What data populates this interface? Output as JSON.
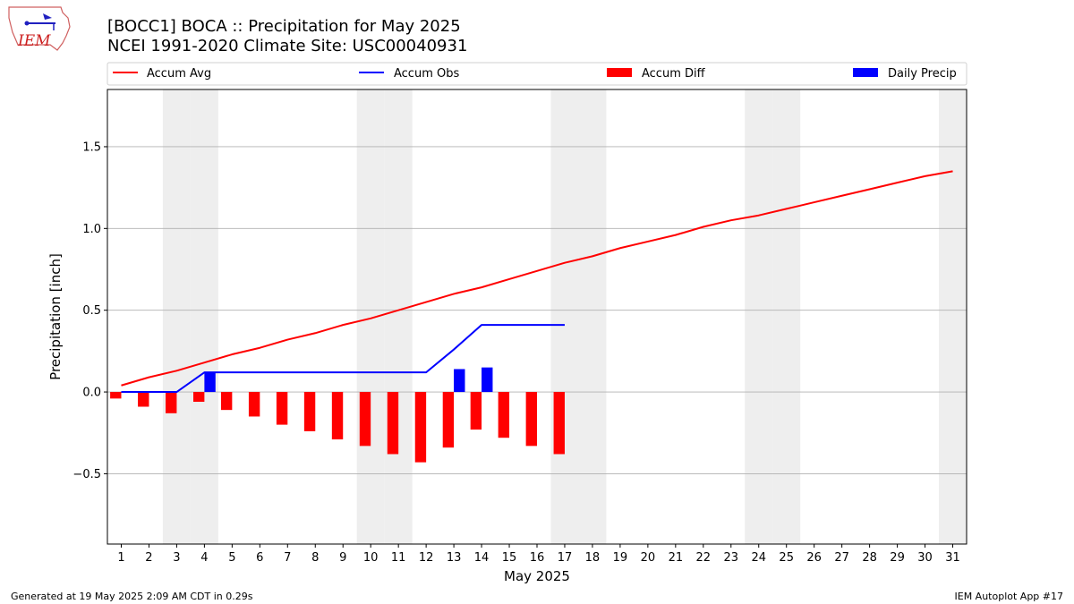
{
  "header": {
    "title_line1": "[BOCC1] BOCA :: Precipitation for May 2025",
    "title_line2": "NCEI 1991-2020 Climate Site: USC00040931"
  },
  "logo": {
    "text": "IEM"
  },
  "footer": {
    "generated": "Generated at 19 May 2025 2:09 AM CDT in 0.29s",
    "app": "IEM Autoplot App #17"
  },
  "colors": {
    "avg": "#ff0000",
    "obs": "#0000ff",
    "diff": "#ff0000",
    "daily": "#0000ff",
    "weekend_shade": "#eeeeee",
    "grid": "#b0b0b0"
  },
  "chart_data": {
    "type": "bar",
    "xlabel": "May 2025",
    "ylabel": "Precipitation [inch]",
    "xlim": [
      0.5,
      31.5
    ],
    "ylim": [
      -0.93,
      1.85
    ],
    "yticks": [
      -0.5,
      0.0,
      0.5,
      1.0,
      1.5
    ],
    "ytick_labels": [
      "−0.5",
      "0.0",
      "0.5",
      "1.0",
      "1.5"
    ],
    "days": [
      1,
      2,
      3,
      4,
      5,
      6,
      7,
      8,
      9,
      10,
      11,
      12,
      13,
      14,
      15,
      16,
      17,
      18,
      19,
      20,
      21,
      22,
      23,
      24,
      25,
      26,
      27,
      28,
      29,
      30,
      31
    ],
    "grid": "horizontal",
    "legend_position": "top",
    "weekend_days": [
      3,
      4,
      10,
      11,
      17,
      18,
      24,
      25,
      31
    ],
    "series": [
      {
        "name": "Accum Avg",
        "kind": "line",
        "x": [
          1,
          2,
          3,
          4,
          5,
          6,
          7,
          8,
          9,
          10,
          11,
          12,
          13,
          14,
          15,
          16,
          17,
          18,
          19,
          20,
          21,
          22,
          23,
          24,
          25,
          26,
          27,
          28,
          29,
          30,
          31
        ],
        "values": [
          0.04,
          0.09,
          0.13,
          0.18,
          0.23,
          0.27,
          0.32,
          0.36,
          0.41,
          0.45,
          0.5,
          0.55,
          0.6,
          0.64,
          0.69,
          0.74,
          0.79,
          0.83,
          0.88,
          0.92,
          0.96,
          1.01,
          1.05,
          1.08,
          1.12,
          1.16,
          1.2,
          1.24,
          1.28,
          1.32,
          1.35
        ]
      },
      {
        "name": "Accum Obs",
        "kind": "line",
        "x": [
          1,
          2,
          3,
          4,
          5,
          6,
          7,
          8,
          9,
          10,
          11,
          12,
          13,
          14,
          15,
          16,
          17
        ],
        "values": [
          0.0,
          0.0,
          0.0,
          0.12,
          0.12,
          0.12,
          0.12,
          0.12,
          0.12,
          0.12,
          0.12,
          0.12,
          0.26,
          0.41,
          0.41,
          0.41,
          0.41
        ]
      },
      {
        "name": "Accum Diff",
        "kind": "bar",
        "offset": -0.2,
        "x": [
          1,
          2,
          3,
          4,
          5,
          6,
          7,
          8,
          9,
          10,
          11,
          12,
          13,
          14,
          15,
          16,
          17
        ],
        "values": [
          -0.04,
          -0.09,
          -0.13,
          -0.06,
          -0.11,
          -0.15,
          -0.2,
          -0.24,
          -0.29,
          -0.33,
          -0.38,
          -0.43,
          -0.34,
          -0.23,
          -0.28,
          -0.33,
          -0.38
        ]
      },
      {
        "name": "Daily Precip",
        "kind": "bar",
        "offset": 0.2,
        "x": [
          4,
          13,
          14
        ],
        "values": [
          0.12,
          0.14,
          0.15
        ]
      }
    ]
  }
}
